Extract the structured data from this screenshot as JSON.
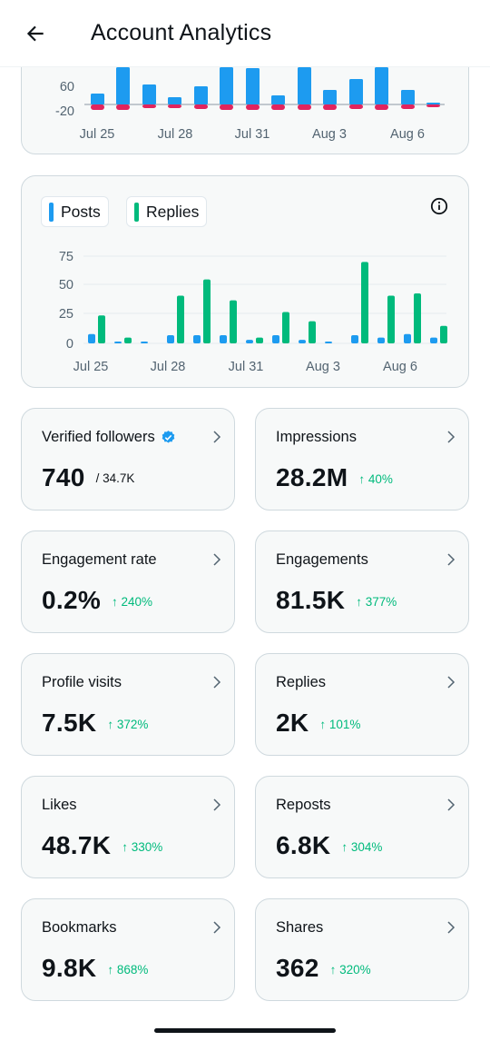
{
  "header": {
    "title": "Account Analytics"
  },
  "colors": {
    "posts": "#1d9bf0",
    "replies": "#00ba7c",
    "negative": "#e0245e",
    "positive_change": "#00ba7c"
  },
  "chart1": {
    "x_labels": [
      "Jul 25",
      "Jul 28",
      "Jul 31",
      "Aug 3",
      "Aug 6"
    ],
    "y_ticks": [
      "60",
      "-20"
    ]
  },
  "chart2": {
    "legend": {
      "posts": "Posts",
      "replies": "Replies"
    },
    "x_labels": [
      "Jul 25",
      "Jul 28",
      "Jul 31",
      "Aug 3",
      "Aug 6"
    ],
    "y_ticks": [
      "75",
      "50",
      "25",
      "0"
    ]
  },
  "chart_data": [
    {
      "type": "bar",
      "categories": [
        "Jul 25",
        "Jul 26",
        "Jul 27",
        "Jul 28",
        "Jul 29",
        "Jul 30",
        "Jul 31",
        "Aug 1",
        "Aug 2",
        "Aug 3",
        "Aug 4",
        "Aug 5",
        "Aug 6",
        "Aug 7"
      ],
      "series": [
        {
          "values": [
            30,
            110,
            55,
            20,
            50,
            110,
            100,
            25,
            110,
            40,
            70,
            110,
            40,
            5
          ]
        },
        {
          "values": [
            -12,
            -12,
            -8,
            -8,
            -10,
            -12,
            -12,
            -12,
            -12,
            -12,
            -10,
            -12,
            -10,
            -6
          ]
        }
      ],
      "y_ticks": [
        60,
        -20
      ]
    },
    {
      "type": "bar",
      "categories": [
        "Jul 25",
        "Jul 26",
        "Jul 27",
        "Jul 28",
        "Jul 29",
        "Jul 30",
        "Jul 31",
        "Aug 1",
        "Aug 2",
        "Aug 3",
        "Aug 4",
        "Aug 5",
        "Aug 6",
        "Aug 7"
      ],
      "series": [
        {
          "name": "Posts",
          "values": [
            8,
            1,
            1,
            7,
            7,
            7,
            3,
            7,
            3,
            1,
            7,
            5,
            8,
            5
          ]
        },
        {
          "name": "Replies",
          "values": [
            24,
            5,
            0,
            41,
            55,
            37,
            5,
            27,
            19,
            0,
            70,
            41,
            43,
            15
          ]
        }
      ],
      "y_ticks": [
        0,
        25,
        50,
        75
      ],
      "ylim": [
        0,
        80
      ]
    }
  ],
  "metrics": [
    {
      "id": "verified-followers",
      "label": "Verified followers",
      "value": "740",
      "sub": "/ 34.7K",
      "verified": true
    },
    {
      "id": "impressions",
      "label": "Impressions",
      "value": "28.2M",
      "change": "↑ 40%"
    },
    {
      "id": "engagement-rate",
      "label": "Engagement rate",
      "value": "0.2%",
      "change": "↑ 240%"
    },
    {
      "id": "engagements",
      "label": "Engagements",
      "value": "81.5K",
      "change": "↑ 377%"
    },
    {
      "id": "profile-visits",
      "label": "Profile visits",
      "value": "7.5K",
      "change": "↑ 372%"
    },
    {
      "id": "replies",
      "label": "Replies",
      "value": "2K",
      "change": "↑ 101%"
    },
    {
      "id": "likes",
      "label": "Likes",
      "value": "48.7K",
      "change": "↑ 330%"
    },
    {
      "id": "reposts",
      "label": "Reposts",
      "value": "6.8K",
      "change": "↑ 304%"
    },
    {
      "id": "bookmarks",
      "label": "Bookmarks",
      "value": "9.8K",
      "change": "↑ 868%"
    },
    {
      "id": "shares",
      "label": "Shares",
      "value": "362",
      "change": "↑ 320%"
    }
  ]
}
